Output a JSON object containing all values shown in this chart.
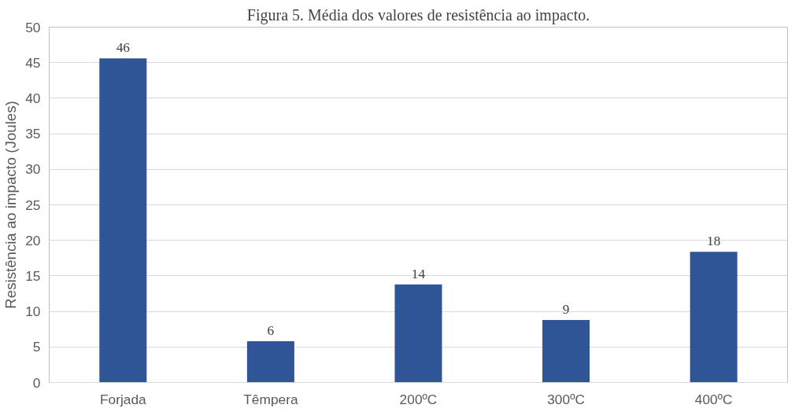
{
  "chart_data": {
    "type": "bar",
    "title": "Figura 5. Média dos valores de resistência ao impacto.",
    "ylabel": "Resistência ao impacto (Joules)",
    "categories": [
      "Forjada",
      "Têmpera",
      "200ºC",
      "300ºC",
      "400ºC"
    ],
    "values": [
      45.6,
      5.8,
      13.8,
      8.8,
      18.4
    ],
    "value_labels": [
      "46",
      "6",
      "14",
      "9",
      "18"
    ],
    "color": "#2f5597",
    "ylim": [
      0,
      50
    ],
    "yticks": [
      0,
      5,
      10,
      15,
      20,
      25,
      30,
      35,
      40,
      45,
      50
    ],
    "grid": "y"
  }
}
